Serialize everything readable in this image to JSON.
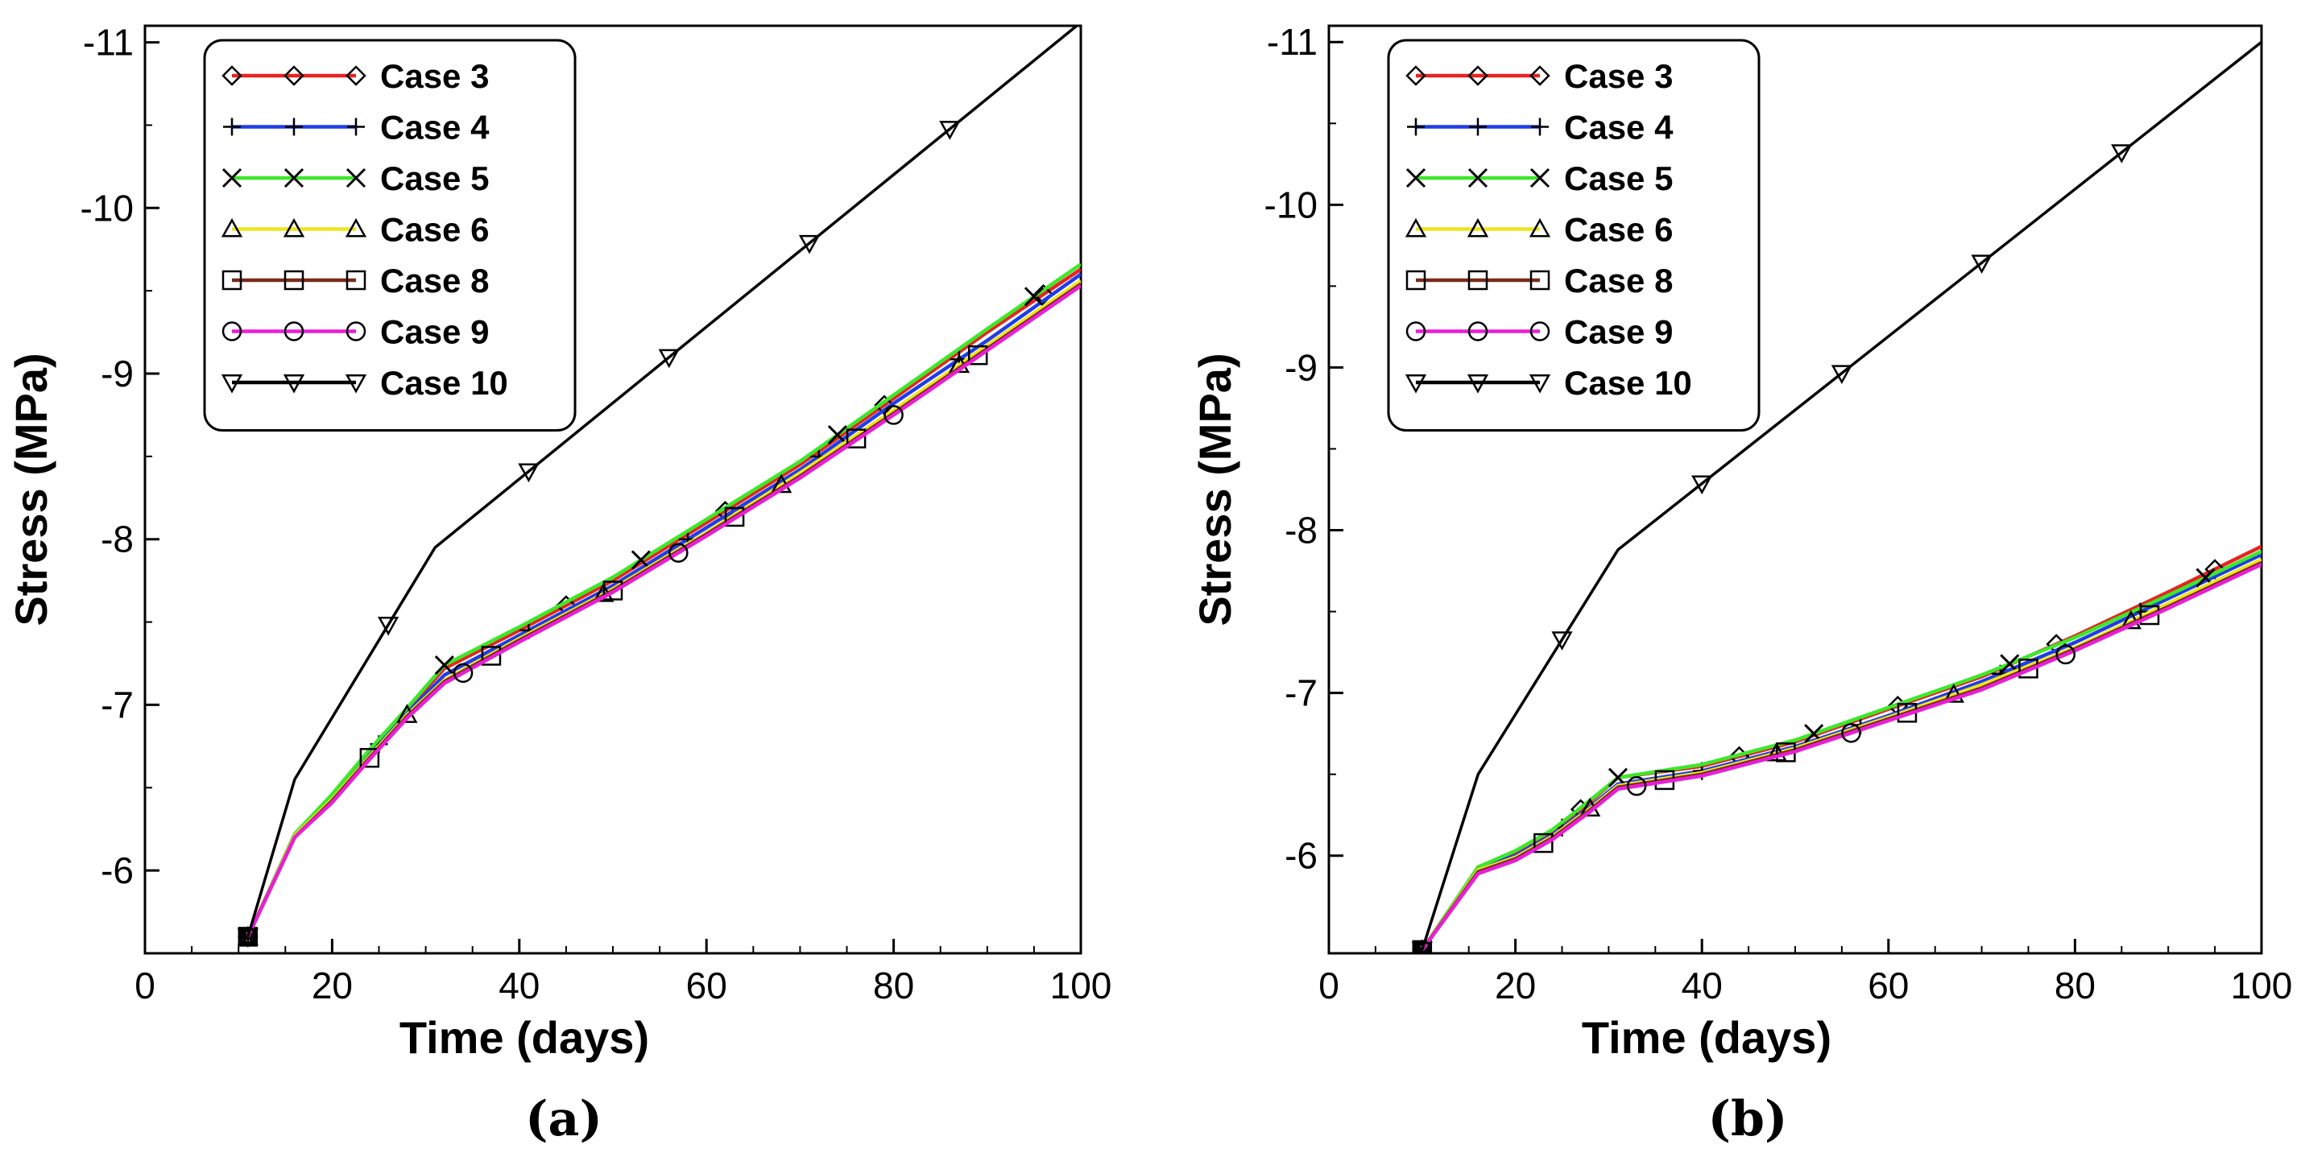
{
  "chart_data": [
    {
      "type": "line",
      "panel_label": "(a)",
      "xlabel": "Time (days)",
      "ylabel": "Stress (MPa)",
      "xlim": [
        0,
        100
      ],
      "ylim": [
        -5.5,
        -11.1
      ],
      "xticks": [
        0,
        20,
        40,
        60,
        80,
        100
      ],
      "xtick_labels": [
        "0",
        "20",
        "40",
        "60",
        "80",
        "100"
      ],
      "yticks": [
        -6,
        -7,
        -8,
        -9,
        -10,
        -11
      ],
      "ytick_labels": [
        "-6",
        "-7",
        "-8",
        "-9",
        "-10",
        "-11"
      ],
      "legend_position": "top-left",
      "series": [
        {
          "name": "Case 3",
          "color": "#e8231f",
          "marker": "diamond",
          "x": [
            11,
            16,
            20,
            24,
            28,
            32,
            40,
            50,
            60,
            70,
            80,
            90,
            100
          ],
          "y": [
            -5.6,
            -6.22,
            -6.45,
            -6.72,
            -6.97,
            -7.22,
            -7.45,
            -7.75,
            -8.1,
            -8.45,
            -8.85,
            -9.25,
            -9.63
          ],
          "marker_x": [
            45,
            62,
            79,
            96
          ]
        },
        {
          "name": "Case 4",
          "color": "#1f3de8",
          "marker": "plus",
          "x": [
            11,
            16,
            20,
            24,
            28,
            32,
            40,
            50,
            60,
            70,
            80,
            90,
            100
          ],
          "y": [
            -5.6,
            -6.21,
            -6.43,
            -6.7,
            -6.95,
            -7.18,
            -7.42,
            -7.72,
            -8.07,
            -8.42,
            -8.82,
            -9.2,
            -9.6
          ],
          "marker_x": [
            25,
            41,
            58,
            72,
            87
          ]
        },
        {
          "name": "Case 5",
          "color": "#3ce82a",
          "marker": "x",
          "x": [
            11,
            16,
            20,
            24,
            28,
            32,
            40,
            50,
            60,
            70,
            80,
            90,
            100
          ],
          "y": [
            -5.6,
            -6.22,
            -6.46,
            -6.73,
            -6.98,
            -7.24,
            -7.47,
            -7.77,
            -8.12,
            -8.47,
            -8.87,
            -9.27,
            -9.66
          ],
          "marker_x": [
            32,
            53,
            74,
            95
          ]
        },
        {
          "name": "Case 6",
          "color": "#ede51f",
          "marker": "triangle-up",
          "x": [
            11,
            16,
            20,
            24,
            28,
            32,
            40,
            50,
            60,
            70,
            80,
            90,
            100
          ],
          "y": [
            -5.6,
            -6.21,
            -6.43,
            -6.69,
            -6.94,
            -7.15,
            -7.4,
            -7.7,
            -8.04,
            -8.4,
            -8.78,
            -9.17,
            -9.56
          ],
          "marker_x": [
            28,
            49,
            68,
            87
          ]
        },
        {
          "name": "Case 8",
          "color": "#7a2a1a",
          "marker": "square",
          "x": [
            11,
            16,
            20,
            24,
            28,
            32,
            40,
            50,
            60,
            70,
            80,
            90,
            100
          ],
          "y": [
            -5.6,
            -6.2,
            -6.42,
            -6.68,
            -6.93,
            -7.14,
            -7.39,
            -7.69,
            -8.03,
            -8.38,
            -8.76,
            -9.15,
            -9.54
          ],
          "marker_x": [
            24,
            37,
            50,
            63,
            76,
            89
          ]
        },
        {
          "name": "Case 9",
          "color": "#e81fd6",
          "marker": "circle",
          "x": [
            11,
            16,
            20,
            24,
            28,
            32,
            40,
            50,
            60,
            70,
            80,
            90,
            100
          ],
          "y": [
            -5.6,
            -6.2,
            -6.41,
            -6.67,
            -6.92,
            -7.13,
            -7.38,
            -7.68,
            -8.02,
            -8.37,
            -8.75,
            -9.14,
            -9.53
          ],
          "marker_x": [
            34,
            57,
            80
          ]
        },
        {
          "name": "Case 10",
          "color": "#000000",
          "marker": "triangle-down",
          "x": [
            11,
            16,
            31,
            100
          ],
          "y": [
            -5.6,
            -6.55,
            -7.95,
            -11.12
          ],
          "marker_x": [
            26,
            41,
            56,
            71,
            86
          ]
        }
      ]
    },
    {
      "type": "line",
      "panel_label": "(b)",
      "xlabel": "Time (days)",
      "ylabel": "Stress (MPa)",
      "xlim": [
        0,
        100
      ],
      "ylim": [
        -5.4,
        -11.1
      ],
      "xticks": [
        0,
        20,
        40,
        60,
        80,
        100
      ],
      "xtick_labels": [
        "0",
        "20",
        "40",
        "60",
        "80",
        "100"
      ],
      "yticks": [
        -6,
        -7,
        -8,
        -9,
        -10,
        -11
      ],
      "ytick_labels": [
        "-6",
        "-7",
        "-8",
        "-9",
        "-10",
        "-11"
      ],
      "legend_position": "top-left",
      "series": [
        {
          "name": "Case 3",
          "color": "#e8231f",
          "marker": "diamond",
          "x": [
            10,
            16,
            20,
            24,
            28,
            31,
            40,
            50,
            60,
            70,
            80,
            90,
            100
          ],
          "y": [
            -5.42,
            -5.93,
            -6.02,
            -6.15,
            -6.33,
            -6.48,
            -6.55,
            -6.7,
            -6.9,
            -7.1,
            -7.35,
            -7.62,
            -7.9
          ],
          "marker_x": [
            27,
            44,
            61,
            78,
            95
          ]
        },
        {
          "name": "Case 4",
          "color": "#1f3de8",
          "marker": "plus",
          "x": [
            10,
            16,
            20,
            24,
            28,
            31,
            40,
            50,
            60,
            70,
            80,
            90,
            100
          ],
          "y": [
            -5.42,
            -5.92,
            -6.0,
            -6.13,
            -6.3,
            -6.44,
            -6.52,
            -6.67,
            -6.86,
            -7.07,
            -7.31,
            -7.58,
            -7.85
          ],
          "marker_x": [
            25,
            40,
            57,
            72,
            87
          ]
        },
        {
          "name": "Case 5",
          "color": "#3ce82a",
          "marker": "x",
          "x": [
            10,
            16,
            20,
            24,
            28,
            31,
            40,
            50,
            60,
            70,
            80,
            90,
            100
          ],
          "y": [
            -5.42,
            -5.93,
            -6.03,
            -6.16,
            -6.34,
            -6.48,
            -6.56,
            -6.71,
            -6.91,
            -7.11,
            -7.34,
            -7.6,
            -7.87
          ],
          "marker_x": [
            31,
            52,
            73,
            94
          ]
        },
        {
          "name": "Case 6",
          "color": "#ede51f",
          "marker": "triangle-up",
          "x": [
            10,
            16,
            20,
            24,
            28,
            31,
            40,
            50,
            60,
            70,
            80,
            90,
            100
          ],
          "y": [
            -5.42,
            -5.91,
            -5.99,
            -6.12,
            -6.29,
            -6.43,
            -6.51,
            -6.66,
            -6.85,
            -7.05,
            -7.28,
            -7.55,
            -7.82
          ],
          "marker_x": [
            28,
            48,
            67,
            86
          ]
        },
        {
          "name": "Case 8",
          "color": "#7a2a1a",
          "marker": "square",
          "x": [
            10,
            16,
            20,
            24,
            28,
            31,
            40,
            50,
            60,
            70,
            80,
            90,
            100
          ],
          "y": [
            -5.42,
            -5.9,
            -5.98,
            -6.11,
            -6.28,
            -6.42,
            -6.5,
            -6.65,
            -6.84,
            -7.03,
            -7.27,
            -7.53,
            -7.8
          ],
          "marker_x": [
            23,
            36,
            49,
            62,
            75,
            88
          ]
        },
        {
          "name": "Case 9",
          "color": "#e81fd6",
          "marker": "circle",
          "x": [
            10,
            16,
            20,
            24,
            28,
            31,
            40,
            50,
            60,
            70,
            80,
            90,
            100
          ],
          "y": [
            -5.42,
            -5.89,
            -5.97,
            -6.1,
            -6.27,
            -6.41,
            -6.49,
            -6.64,
            -6.83,
            -7.02,
            -7.26,
            -7.52,
            -7.79
          ],
          "marker_x": [
            33,
            56,
            79
          ]
        },
        {
          "name": "Case 10",
          "color": "#000000",
          "marker": "triangle-down",
          "x": [
            10,
            16,
            31,
            100
          ],
          "y": [
            -5.42,
            -6.5,
            -7.88,
            -11.0
          ],
          "marker_x": [
            25,
            40,
            55,
            70,
            85
          ]
        }
      ]
    }
  ]
}
